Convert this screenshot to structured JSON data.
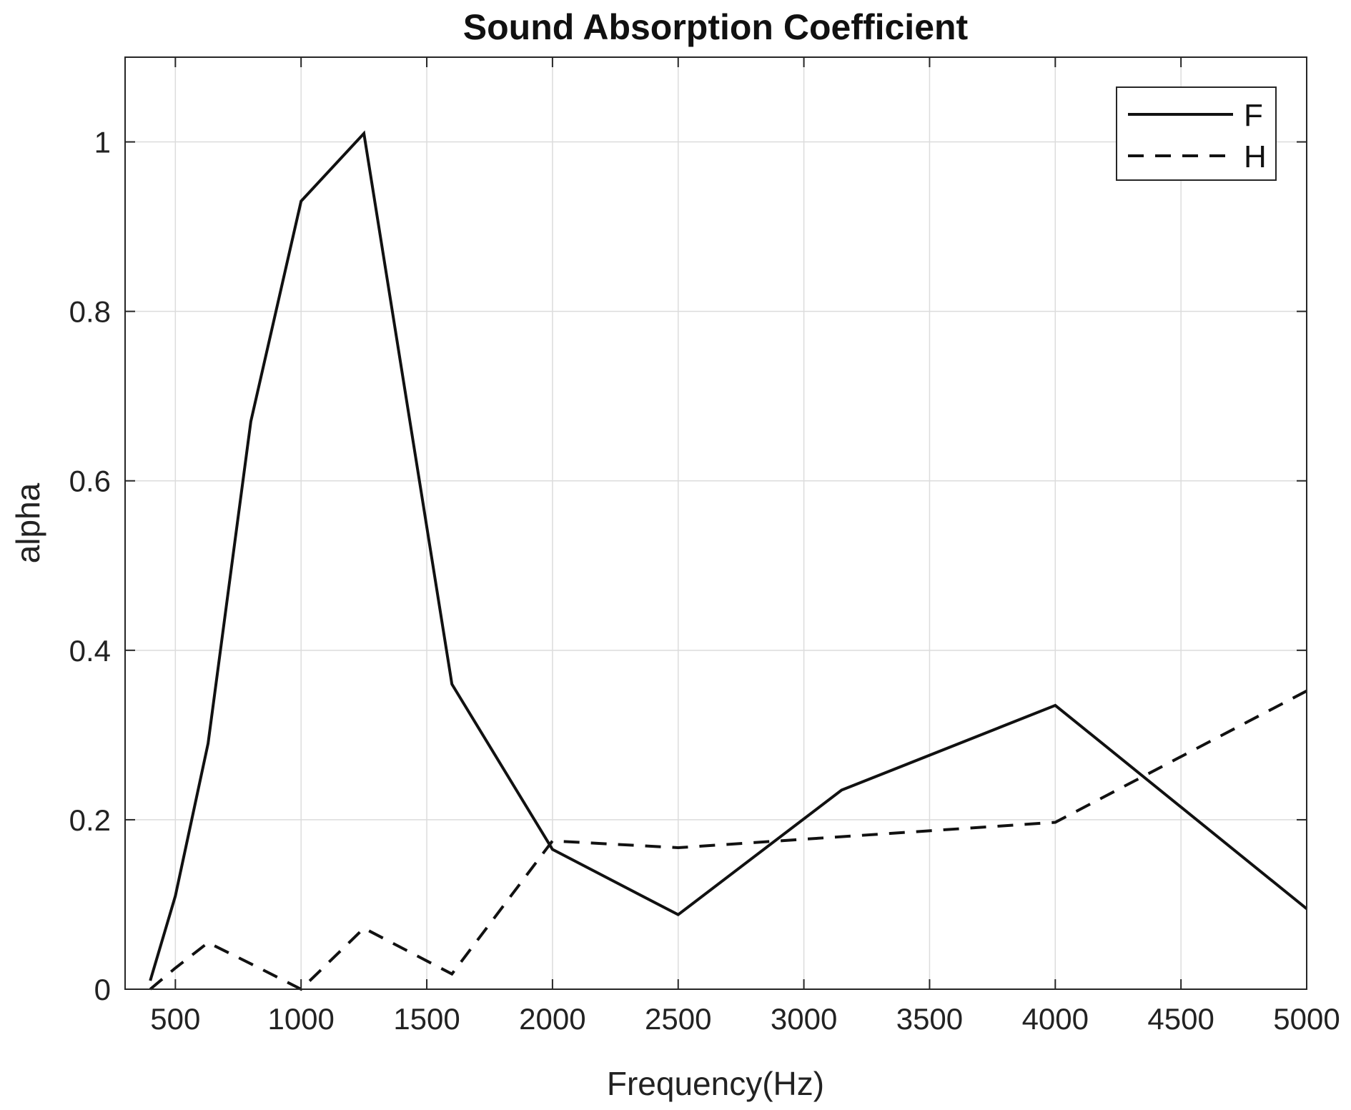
{
  "chart_data": {
    "type": "line",
    "title": "Sound Absorption Coefficient",
    "xlabel": "Frequency(Hz)",
    "ylabel": "alpha",
    "xlim": [
      300,
      5000
    ],
    "ylim": [
      0,
      1.1
    ],
    "xticks": [
      500,
      1000,
      1500,
      2000,
      2500,
      3000,
      3500,
      4000,
      4500,
      5000
    ],
    "yticks": [
      0,
      0.2,
      0.4,
      0.6,
      0.8,
      1
    ],
    "ytick_labels": [
      "0",
      "0.2",
      "0.4",
      "0.6",
      "0.8",
      "1"
    ],
    "grid": true,
    "legend_position": "top-right",
    "series": [
      {
        "name": "F",
        "style": "solid",
        "color": "#111111",
        "x": [
          400,
          500,
          630,
          800,
          1000,
          1250,
          1600,
          2000,
          2500,
          3150,
          4000,
          5000
        ],
        "y": [
          0.01,
          0.11,
          0.29,
          0.67,
          0.93,
          1.01,
          0.36,
          0.165,
          0.088,
          0.235,
          0.335,
          0.095
        ]
      },
      {
        "name": "H",
        "style": "dashed",
        "color": "#111111",
        "x": [
          400,
          500,
          630,
          800,
          1000,
          1250,
          1600,
          2000,
          2500,
          3150,
          4000,
          5000
        ],
        "y": [
          0.0,
          0.025,
          0.055,
          0.03,
          0.0,
          0.072,
          0.018,
          0.175,
          0.167,
          0.18,
          0.197,
          0.352
        ]
      }
    ]
  }
}
